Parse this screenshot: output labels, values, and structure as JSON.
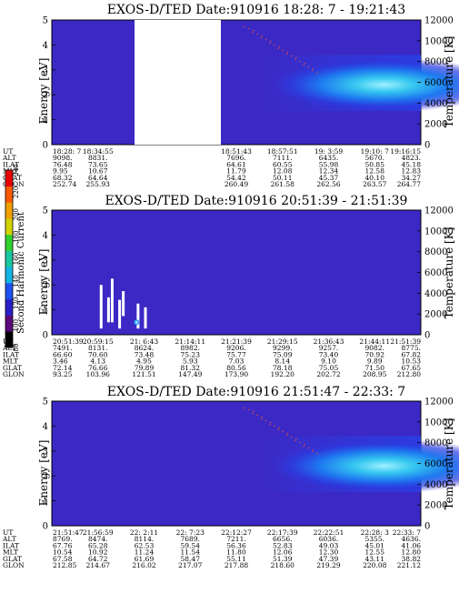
{
  "panels": [
    {
      "title": "EXOS-D/TED   Date:910916  18:28: 7 - 19:21:43",
      "ylabel_left": "Energy [eV]",
      "ylabel_right": "Temperature [K]",
      "yticks_left": [
        "0",
        "1",
        "2",
        "3",
        "4",
        "5"
      ],
      "yticks_right": [
        "0",
        "2000",
        "4000",
        "6000",
        "8000",
        "10000",
        "12000"
      ],
      "data_gap": [
        0.2,
        0.42
      ],
      "plasma": "hot-right",
      "rows": [
        {
          "label": "UT",
          "values": [
            "18:28: 7",
            "18:34:55",
            "",
            "",
            "18:51:43",
            "18:57:51",
            "19: 3:59",
            "19:10: 7",
            "19:16:15"
          ]
        },
        {
          "label": "ALT",
          "values": [
            "9098.",
            "8831.",
            "",
            "",
            "7696.",
            "7111.",
            "6435.",
            "5670.",
            "4823."
          ]
        },
        {
          "label": "ILAT",
          "values": [
            "76.48",
            "73.65",
            "",
            "",
            "64.61",
            "60.55",
            "55.98",
            "50.85",
            "45.18"
          ]
        },
        {
          "label": "MLT",
          "values": [
            "9.95",
            "10.67",
            "",
            "",
            "11.79",
            "12.08",
            "12.34",
            "12.58",
            "12.83"
          ]
        },
        {
          "label": "GLAT",
          "values": [
            "68.32",
            "64.64",
            "",
            "",
            "54.42",
            "50.11",
            "45.37",
            "40.10",
            "34.27"
          ]
        },
        {
          "label": "GLON",
          "values": [
            "252.74",
            "255.93",
            "",
            "",
            "260.49",
            "261.58",
            "262.56",
            "263.57",
            "264.77"
          ]
        }
      ]
    },
    {
      "title": "EXOS-D/TED   Date:910916  20:51:39 - 21:51:39",
      "ylabel_left": "Energy [eV]",
      "ylabel_right": "Temperature [K]",
      "yticks_left": [
        "0",
        "1",
        "2",
        "3",
        "4",
        "5"
      ],
      "yticks_right": [
        "0",
        "2000",
        "4000",
        "6000",
        "8000",
        "10000",
        "12000"
      ],
      "plasma": "low-spikes",
      "rows": [
        {
          "label": "UT",
          "values": [
            "20:51:39",
            "20:59:15",
            "21: 6:43",
            "21:14:11",
            "21:21:39",
            "21:29:15",
            "21:36:43",
            "21:44:11",
            "21:51:39"
          ]
        },
        {
          "label": "ALT",
          "values": [
            "7491.",
            "8131.",
            "8624.",
            "8982.",
            "9206.",
            "9299.",
            "9257.",
            "9082.",
            "8775."
          ]
        },
        {
          "label": "ILAT",
          "values": [
            "66.60",
            "70.60",
            "73.48",
            "75.23",
            "75.77",
            "75.09",
            "73.40",
            "70.92",
            "67.82"
          ]
        },
        {
          "label": "MLT",
          "values": [
            "3.46",
            "4.13",
            "4.95",
            "5.93",
            "7.03",
            "8.14",
            "9.10",
            "9.89",
            "10.53"
          ]
        },
        {
          "label": "GLAT",
          "values": [
            "72.14",
            "76.66",
            "79.89",
            "81.32",
            "80.56",
            "78.18",
            "75.05",
            "71.50",
            "67.65"
          ]
        },
        {
          "label": "GLON",
          "values": [
            "93.25",
            "103.96",
            "121.51",
            "147.49",
            "173.90",
            "192.20",
            "202.72",
            "208.95",
            "212.80"
          ]
        }
      ]
    },
    {
      "title": "EXOS-D/TED   Date:910916  21:51:47 - 22:33: 7",
      "ylabel_left": "Energy [eV]",
      "ylabel_right": "Temperature [K]",
      "yticks_left": [
        "0",
        "1",
        "2",
        "3",
        "4",
        "5"
      ],
      "yticks_right": [
        "0",
        "2000",
        "4000",
        "6000",
        "8000",
        "10000",
        "12000"
      ],
      "plasma": "hot-right",
      "rows": [
        {
          "label": "UT",
          "values": [
            "21:51:47",
            "21:56:59",
            "22: 2:11",
            "22: 7:23",
            "22:12:27",
            "22:17:39",
            "22:22:51",
            "22:28: 3",
            "22:33: 7"
          ]
        },
        {
          "label": "ALT",
          "values": [
            "8769.",
            "8474.",
            "8114.",
            "7689.",
            "7211.",
            "6656.",
            "6036.",
            "5355.",
            "4636."
          ]
        },
        {
          "label": "ILAT",
          "values": [
            "67.76",
            "65.28",
            "62.53",
            "59.54",
            "56.36",
            "52.83",
            "49.03",
            "45.01",
            "41.06"
          ]
        },
        {
          "label": "MLT",
          "values": [
            "10.54",
            "10.92",
            "11.24",
            "11.54",
            "11.80",
            "12.06",
            "12.30",
            "12.55",
            "12.80"
          ]
        },
        {
          "label": "GLAT",
          "values": [
            "67.58",
            "64.72",
            "61.69",
            "58.47",
            "55.11",
            "51.39",
            "47.39",
            "43.11",
            "38.82"
          ]
        },
        {
          "label": "GLON",
          "values": [
            "212.85",
            "214.67",
            "216.02",
            "217.07",
            "217.88",
            "218.60",
            "219.29",
            "220.08",
            "221.12"
          ]
        }
      ]
    }
  ],
  "colorbar": {
    "label": "Second Harmonic Current",
    "ticks": [
      "80",
      "100",
      "120",
      "140",
      "160",
      "180",
      "200",
      "220",
      "240"
    ],
    "colors": [
      "#000000",
      "#5a0a7a",
      "#2a1ec8",
      "#1e50f0",
      "#14b4e6",
      "#18c8a0",
      "#30d030",
      "#d2d200",
      "#f0a000",
      "#ff5a00",
      "#e80000"
    ]
  },
  "chart_data": [
    {
      "type": "heatmap",
      "title": "EXOS-D/TED   Date:910916  18:28: 7 - 19:21:43",
      "xlabel": "UT",
      "ylabel": "Energy [eV]",
      "ylim": [
        0,
        5
      ],
      "y2label": "Temperature [K]",
      "y2lim": [
        0,
        12000
      ]
    },
    {
      "type": "heatmap",
      "title": "EXOS-D/TED   Date:910916  20:51:39 - 21:51:39",
      "xlabel": "UT",
      "ylabel": "Energy [eV]",
      "ylim": [
        0,
        5
      ],
      "y2label": "Temperature [K]",
      "y2lim": [
        0,
        12000
      ]
    },
    {
      "type": "heatmap",
      "title": "EXOS-D/TED   Date:910916  21:51:47 - 22:33: 7",
      "xlabel": "UT",
      "ylabel": "Energy [eV]",
      "ylim": [
        0,
        5
      ],
      "y2label": "Temperature [K]",
      "y2lim": [
        0,
        12000
      ]
    }
  ]
}
